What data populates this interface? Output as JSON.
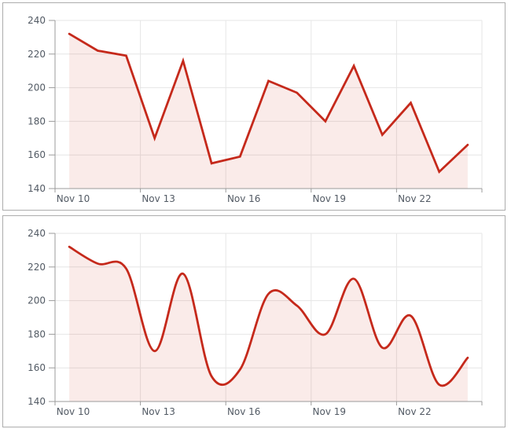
{
  "colors": {
    "line": "#c5291b",
    "fill_base": "#c62814",
    "fill_opacity": 0.095,
    "fill_equivalent_hex": "#f9e9e5",
    "grid": "#e6e6e6",
    "axis": "#9b9b9b",
    "tick_label": "#525a64",
    "panel_border": "#adadad",
    "background": "#ffffff"
  },
  "chart_data": [
    {
      "type": "area",
      "curve": "linear",
      "title": "",
      "x_dates": [
        "Nov 10",
        "Nov 11",
        "Nov 12",
        "Nov 13",
        "Nov 14",
        "Nov 15",
        "Nov 16",
        "Nov 17",
        "Nov 18",
        "Nov 19",
        "Nov 20",
        "Nov 21",
        "Nov 22",
        "Nov 23",
        "Nov 24"
      ],
      "values": [
        232,
        222,
        219,
        170,
        216,
        155,
        159,
        204,
        197,
        180,
        213,
        172,
        191,
        150,
        166
      ],
      "x_tick_labels": [
        "Nov 10",
        "Nov 13",
        "Nov 16",
        "Nov 19",
        "Nov 22"
      ],
      "x_tick_interval_days": 3,
      "y_tick_labels": [
        "240",
        "220",
        "200",
        "180",
        "160",
        "140"
      ],
      "y_ticks": [
        240,
        220,
        200,
        180,
        160,
        140
      ],
      "ylim": [
        140,
        240
      ],
      "grid": true,
      "legend": false,
      "line_color": "#c5291b"
    },
    {
      "type": "area",
      "curve": "spline",
      "title": "",
      "x_dates": [
        "Nov 10",
        "Nov 11",
        "Nov 12",
        "Nov 13",
        "Nov 14",
        "Nov 15",
        "Nov 16",
        "Nov 17",
        "Nov 18",
        "Nov 19",
        "Nov 20",
        "Nov 21",
        "Nov 22",
        "Nov 23",
        "Nov 24"
      ],
      "values": [
        232,
        222,
        219,
        170,
        216,
        155,
        159,
        204,
        197,
        180,
        213,
        172,
        191,
        150,
        166
      ],
      "x_tick_labels": [
        "Nov 10",
        "Nov 13",
        "Nov 16",
        "Nov 19",
        "Nov 22"
      ],
      "x_tick_interval_days": 3,
      "y_tick_labels": [
        "240",
        "220",
        "200",
        "180",
        "160",
        "140"
      ],
      "y_ticks": [
        240,
        220,
        200,
        180,
        160,
        140
      ],
      "ylim": [
        140,
        240
      ],
      "grid": true,
      "legend": false,
      "line_color": "#c5291b"
    }
  ]
}
